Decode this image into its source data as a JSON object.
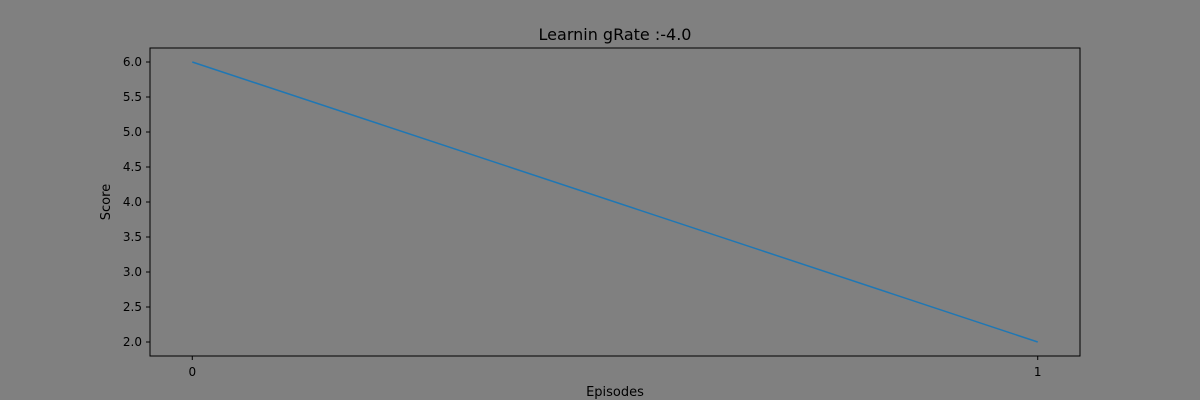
{
  "chart_data": {
    "type": "line",
    "title": "Learnin gRate :-4.0",
    "xlabel": "Episodes",
    "ylabel": "Score",
    "x": [
      0,
      1
    ],
    "series": [
      {
        "values": [
          6.0,
          2.0
        ],
        "color": "#1f77b4"
      }
    ],
    "xlim": [
      -0.05,
      1.05
    ],
    "ylim": [
      1.8,
      6.2
    ],
    "xticks": [
      0,
      1
    ],
    "xtick_labels": [
      "0",
      "1"
    ],
    "yticks": [
      2.0,
      2.5,
      3.0,
      3.5,
      4.0,
      4.5,
      5.0,
      5.5,
      6.0
    ],
    "ytick_labels": [
      "2.0",
      "2.5",
      "3.0",
      "3.5",
      "4.0",
      "4.5",
      "5.0",
      "5.5",
      "6.0"
    ],
    "grid": false,
    "background": "#808080",
    "plot_background": "#808080"
  }
}
